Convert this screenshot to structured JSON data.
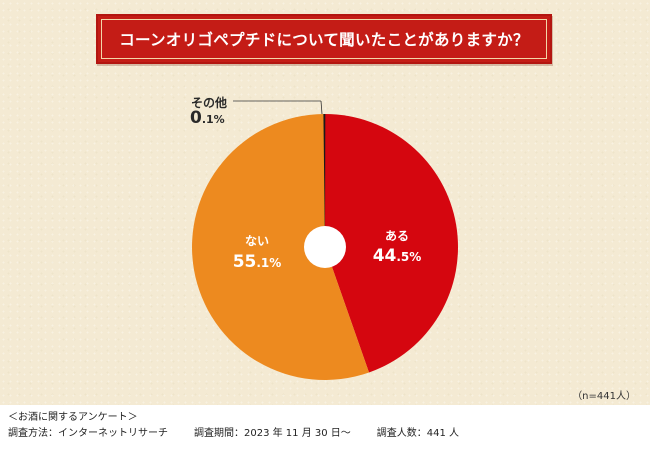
{
  "title": "コーンオリゴペプチドについて聞いたことがありますか？",
  "chart_data": {
    "type": "pie",
    "donut": true,
    "categories": [
      "ある",
      "ない",
      "その他"
    ],
    "values": [
      44.5,
      55.1,
      0.1
    ],
    "value_labels": [
      {
        "num": "44",
        "unit": ".5%"
      },
      {
        "num": "55",
        "unit": ".1%"
      },
      {
        "num": "0",
        "unit": ".1%"
      }
    ],
    "colors": [
      "#d5060f",
      "#ed8a1f",
      "#1a1a1a"
    ],
    "start": "top",
    "direction": "clockwise"
  },
  "sample_size": "（n=441人）",
  "footer": {
    "survey_name": "＜お酒に関するアンケート＞",
    "method": "調査方法：インターネットリサーチ",
    "period": "調査期間：2023 年 11 月 30 日〜",
    "respondents": "調査人数：441 人"
  }
}
